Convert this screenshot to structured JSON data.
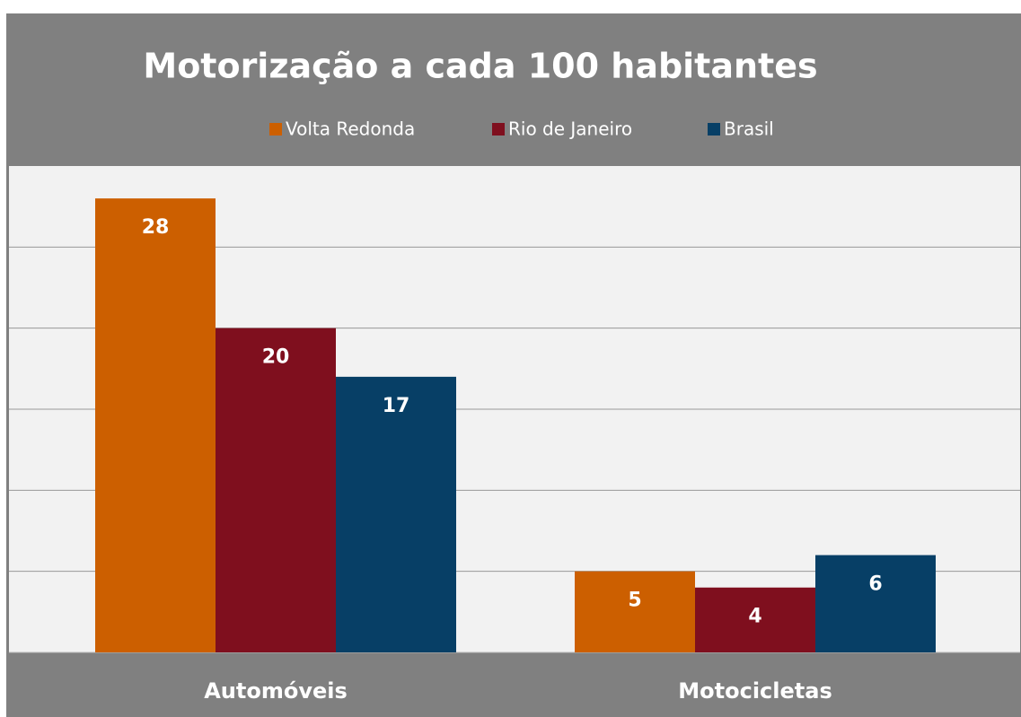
{
  "chart_data": {
    "type": "bar",
    "title": "Motorização a cada 100 habitantes",
    "categories": [
      "Automóveis",
      "Motocicletas"
    ],
    "series": [
      {
        "name": "Volta Redonda",
        "color": "#cc5f00",
        "values": [
          28,
          5
        ]
      },
      {
        "name": "Rio de Janeiro",
        "color": "#7f0f1e",
        "values": [
          20,
          4
        ]
      },
      {
        "name": "Brasil",
        "color": "#073f66",
        "values": [
          17,
          6
        ]
      }
    ],
    "ylim": [
      0,
      30
    ],
    "yticks": [
      0,
      5,
      10,
      15,
      20,
      25
    ],
    "grid": true,
    "legend": "top"
  }
}
